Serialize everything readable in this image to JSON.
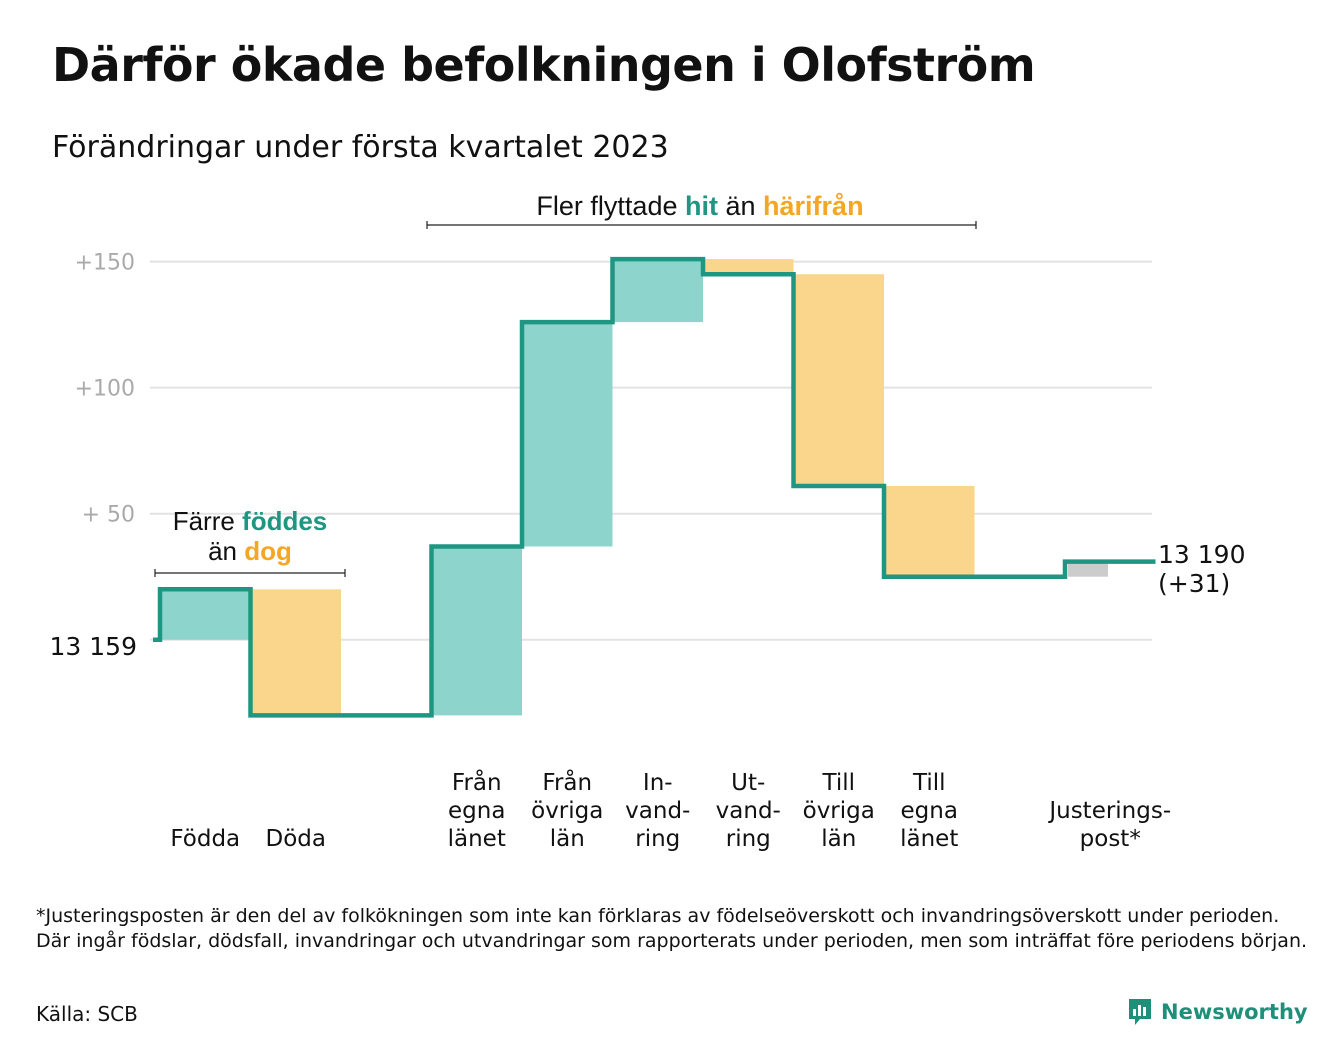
{
  "title": "Därför ökade befolkningen i Olofström",
  "subtitle": "Förändringar under första kvartalet 2023",
  "colors": {
    "increase": "#8dd5cc",
    "decrease": "#fad68c",
    "adjustment": "#cccccc",
    "line": "#1e9682",
    "teal_text": "#1e9682",
    "orange_text": "#f5a623",
    "axis_text": "#aaaaaa",
    "grid": "#e2e2e2"
  },
  "annotations": {
    "migration": {
      "prefix": "Fler flyttade ",
      "highlight1": "hit",
      "middle": " än ",
      "highlight2": "härifrån"
    },
    "births": {
      "line1_prefix": "Färre ",
      "line1_highlight": "föddes",
      "line2_prefix": "än ",
      "line2_highlight": "dog"
    }
  },
  "start_label": "13 159",
  "end_label": [
    "13 190",
    "(+31)"
  ],
  "footnote": "*Justeringsposten är den del av folkökningen som inte kan förklaras av födelseöverskott och invandringsöverskott under perioden. Där ingår födslar, dödsfall, invandringar och utvandringar som rapporterats under perioden, men som inträffat före periodens början.",
  "source": "Källa: SCB",
  "brand": "Newsworthy",
  "chart_data": {
    "type": "waterfall",
    "start_value": 13159,
    "end_value": 13190,
    "y_ticks": [
      {
        "value": 50,
        "label": "+ 50"
      },
      {
        "value": 100,
        "label": "+100"
      },
      {
        "value": 150,
        "label": "+150"
      }
    ],
    "ylim": [
      -35,
      155
    ],
    "steps": [
      {
        "label": [
          "Födda"
        ],
        "change": 20
      },
      {
        "label": [
          "Döda"
        ],
        "change": -50
      },
      {
        "label": [],
        "change": 0
      },
      {
        "label": [
          "Från",
          "egna",
          "länet"
        ],
        "change": 67
      },
      {
        "label": [
          "Från",
          "övriga",
          "län"
        ],
        "change": 89
      },
      {
        "label": [
          "In-",
          "vand-",
          "ring"
        ],
        "change": 25
      },
      {
        "label": [
          "Ut-",
          "vand-",
          "ring"
        ],
        "change": -6
      },
      {
        "label": [
          "Till",
          "övriga",
          "län"
        ],
        "change": -84
      },
      {
        "label": [
          "Till",
          "egna",
          "länet"
        ],
        "change": -36
      },
      {
        "label": [],
        "change": 0
      },
      {
        "label": [
          "Justerings-",
          "post*"
        ],
        "change": 6
      }
    ]
  }
}
